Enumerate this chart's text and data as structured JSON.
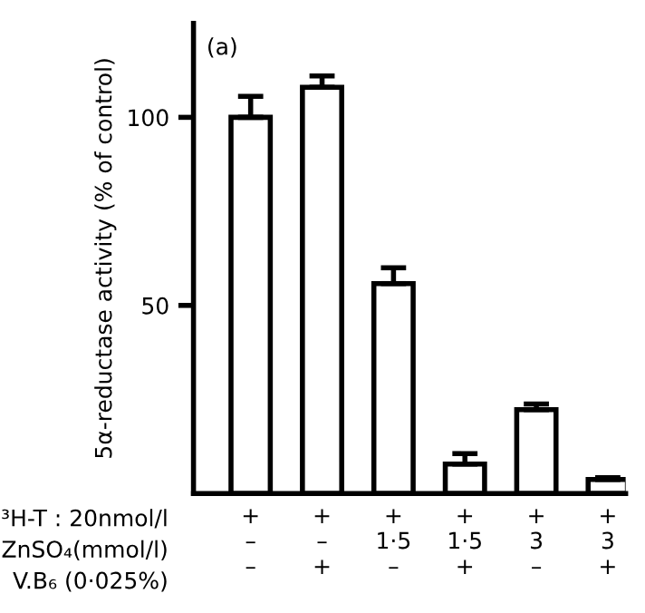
{
  "chart_data": {
    "type": "bar",
    "title": "(a)",
    "ylabel": "5α-reductase activity (% of control)",
    "categories": [
      "+\n–\n–",
      "+\n–\n+",
      "+\n1·5\n–",
      "+\n1·5\n+",
      "+\n3\n–",
      "+\n3\n+"
    ],
    "values": [
      100,
      108,
      55.8,
      7.8,
      22.3,
      3.7
    ],
    "errors": [
      [
        100,
        105.6
      ],
      [
        108,
        111
      ],
      [
        55.8,
        60
      ],
      [
        7.8,
        10.6
      ],
      [
        22.3,
        23.8
      ],
      [
        3.7,
        4.2
      ]
    ],
    "color": "#ffffff",
    "ylim": [
      0,
      125
    ],
    "yticks": [
      50,
      100
    ],
    "annotations": [
      "³H-T : 20nmol/l",
      "ZnSO₄(mmol/l)",
      "V.B₆ (0·025%)"
    ],
    "grid": false,
    "legend": false
  }
}
